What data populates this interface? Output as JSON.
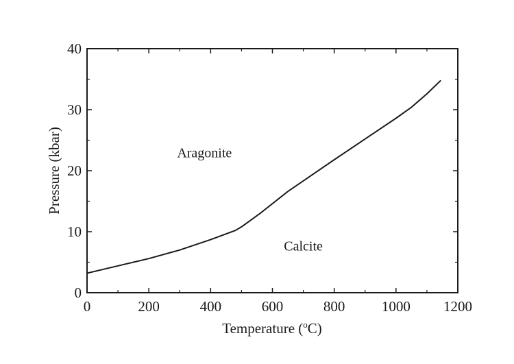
{
  "chart_data": {
    "type": "line",
    "xlabel_main": "Temperature (",
    "xlabel_sup": "o",
    "xlabel_end": "C)",
    "ylabel": "Pressure (kbar)",
    "xlim": [
      0,
      1200
    ],
    "ylim": [
      0,
      40
    ],
    "xticks": [
      0,
      200,
      400,
      600,
      800,
      1000,
      1200
    ],
    "yticks": [
      0,
      10,
      20,
      30,
      40
    ],
    "grid": false,
    "colors": {
      "line": "#1a1a1a",
      "axes": "#1a1a1a",
      "background": "#ffffff"
    },
    "series": [
      {
        "x": [
          0,
          100,
          200,
          300,
          400,
          480,
          500,
          560,
          650,
          800,
          900,
          1000,
          1050,
          1100,
          1145
        ],
        "y": [
          3.2,
          4.4,
          5.6,
          7.0,
          8.7,
          10.2,
          10.8,
          13.0,
          16.6,
          21.8,
          25.2,
          28.6,
          30.4,
          32.6,
          34.8
        ]
      }
    ],
    "annotations": [
      {
        "text": "Aragonite",
        "x": 380,
        "y": 22.2
      },
      {
        "text": "Calcite",
        "x": 700,
        "y": 6.9
      }
    ]
  }
}
